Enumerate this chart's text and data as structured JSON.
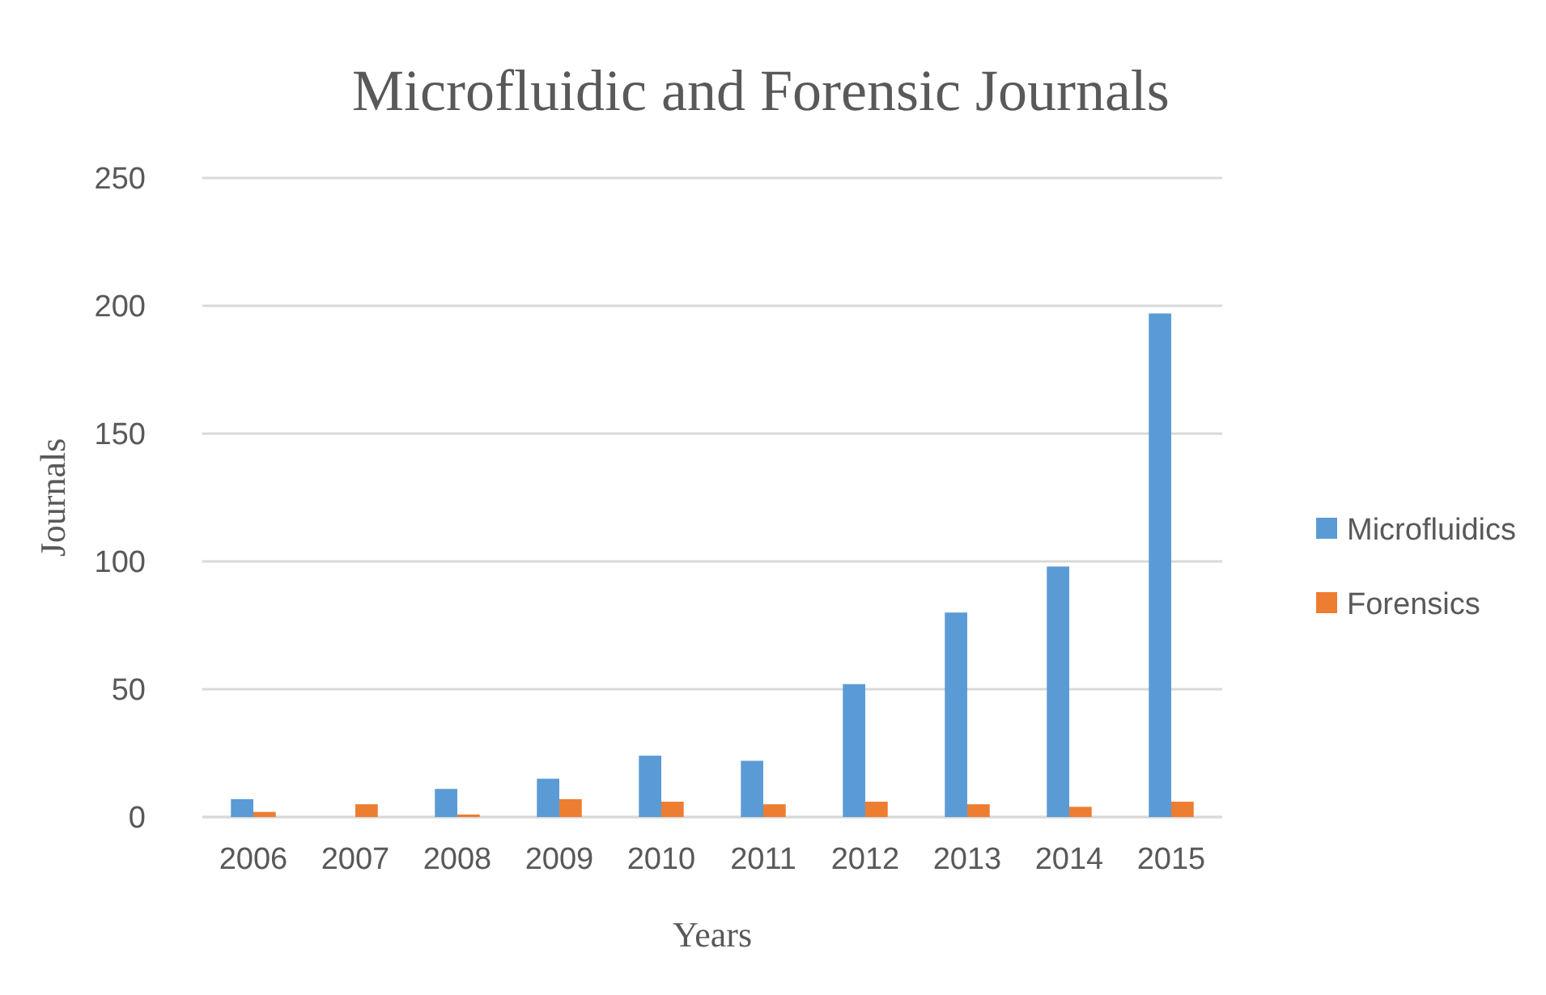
{
  "chart_data": {
    "type": "bar",
    "title": "Microfluidic and Forensic Journals",
    "xlabel": "Years",
    "ylabel": "Journals",
    "categories": [
      "2006",
      "2007",
      "2008",
      "2009",
      "2010",
      "2011",
      "2012",
      "2013",
      "2014",
      "2015"
    ],
    "series": [
      {
        "name": "Microfluidics",
        "color": "#5b9bd5",
        "values": [
          7,
          0,
          11,
          15,
          24,
          22,
          52,
          80,
          98,
          197
        ]
      },
      {
        "name": "Forensics",
        "color": "#ed7d31",
        "values": [
          2,
          5,
          1,
          7,
          6,
          5,
          6,
          5,
          4,
          6
        ]
      }
    ],
    "ylim": [
      0,
      250
    ],
    "yticks": [
      0,
      50,
      100,
      150,
      200,
      250
    ],
    "grid": "y",
    "legend": "right"
  }
}
